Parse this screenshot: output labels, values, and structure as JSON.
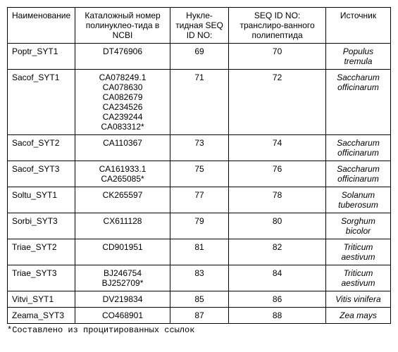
{
  "headers": {
    "name": "Наименование",
    "catalog": "Каталожный номер полинуклео-тида в NCBI",
    "nucleotide": "Нукле-тидная SEQ ID NO:",
    "seqid": "SEQ ID NO: транслиро-ванного полипептида",
    "source": "Источник"
  },
  "rows": [
    {
      "name": "Poptr_SYT1",
      "catalog": [
        "DT476906"
      ],
      "nucleotide": "69",
      "seqid": "70",
      "source": "Populus tremula"
    },
    {
      "name": "Sacof_SYT1",
      "catalog": [
        "CA078249.1",
        "CA078630",
        "CA082679",
        "CA234526",
        "CA239244",
        "CA083312*"
      ],
      "nucleotide": "71",
      "seqid": "72",
      "source": "Saccharum officinarum"
    },
    {
      "name": "Sacof_SYT2",
      "catalog": [
        "CA110367"
      ],
      "nucleotide": "73",
      "seqid": "74",
      "source": "Saccharum officinarum"
    },
    {
      "name": "Sacof_SYT3",
      "catalog": [
        "CA161933.1",
        "CA265085*"
      ],
      "nucleotide": "75",
      "seqid": "76",
      "source": "Saccharum officinarum"
    },
    {
      "name": "Soltu_SYT1",
      "catalog": [
        "CK265597"
      ],
      "nucleotide": "77",
      "seqid": "78",
      "source": "Solanum tuberosum"
    },
    {
      "name": "Sorbi_SYT3",
      "catalog": [
        "CX611128"
      ],
      "nucleotide": "79",
      "seqid": "80",
      "source": "Sorghum bicolor"
    },
    {
      "name": "Triae_SYT2",
      "catalog": [
        "CD901951"
      ],
      "nucleotide": "81",
      "seqid": "82",
      "source": "Triticum aestivum"
    },
    {
      "name": "Triae_SYT3",
      "catalog": [
        "BJ246754",
        "BJ252709*"
      ],
      "nucleotide": "83",
      "seqid": "84",
      "source": "Triticum aestivum"
    },
    {
      "name": "Vitvi_SYT1",
      "catalog": [
        "DV219834"
      ],
      "nucleotide": "85",
      "seqid": "86",
      "source": "Vitis vinifera"
    },
    {
      "name": "Zeama_SYT3",
      "catalog": [
        "CO468901"
      ],
      "nucleotide": "87",
      "seqid": "88",
      "source": "Zea mays"
    }
  ],
  "footnote": "*Составлено из процитированных ссылок"
}
